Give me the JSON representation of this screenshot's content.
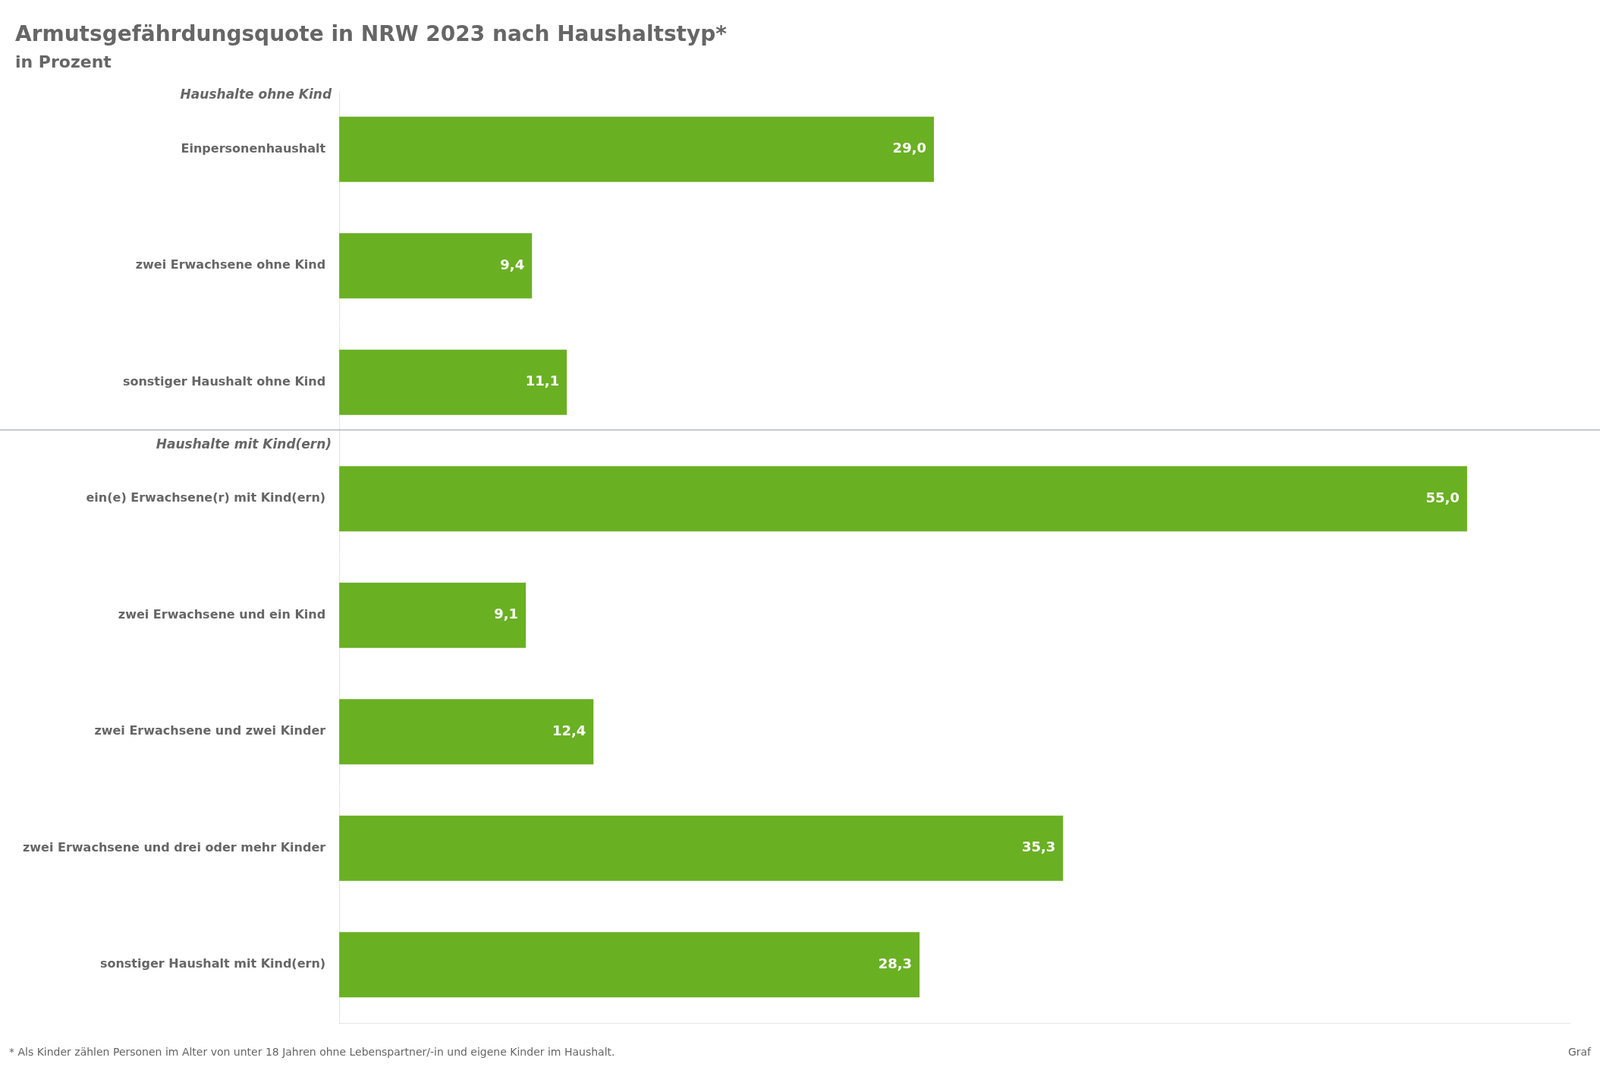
{
  "chart_data": {
    "type": "bar",
    "orientation": "horizontal",
    "title": "Armutsgefährdungsquote in NRW 2023 nach Haushaltstyp*",
    "subtitle": "in Prozent",
    "categories": [
      "Einpersonenhaushalt",
      "zwei Erwachsene ohne Kind",
      "sonstiger Haushalt ohne Kind",
      "ein(e) Erwachsene(r) mit Kind(ern)",
      "zwei Erwachsene und ein Kind",
      "zwei Erwachsene und zwei Kinder",
      "zwei Erwachsene und drei oder mehr Kinder",
      "sonstiger Haushalt mit Kind(ern)"
    ],
    "values": [
      29.0,
      9.4,
      11.1,
      55.0,
      9.1,
      12.4,
      35.3,
      28.3
    ],
    "value_labels": [
      "29,0",
      "9,4",
      "11,1",
      "55,0",
      "9,1",
      "12,4",
      "35,3",
      "28,3"
    ],
    "data_labels": true,
    "color": "#6ab023",
    "xlim": [
      0,
      60
    ],
    "grid": false,
    "tick_labels": "y",
    "annotations": [
      {
        "text": "Haushalte ohne Kind",
        "category": "Einpersonenhaushalt"
      },
      {
        "text": "Haushalte mit Kind(ern)",
        "category": "ein(e) Erwachsene(r) mit Kind(ern)"
      },
      {
        "text": "* Als Kinder zählen Personen im Alter von unter 18 Jahren ohne Lebenspartner/-in und eigene Kinder im Haushalt."
      },
      {
        "text": "Graf"
      }
    ]
  }
}
